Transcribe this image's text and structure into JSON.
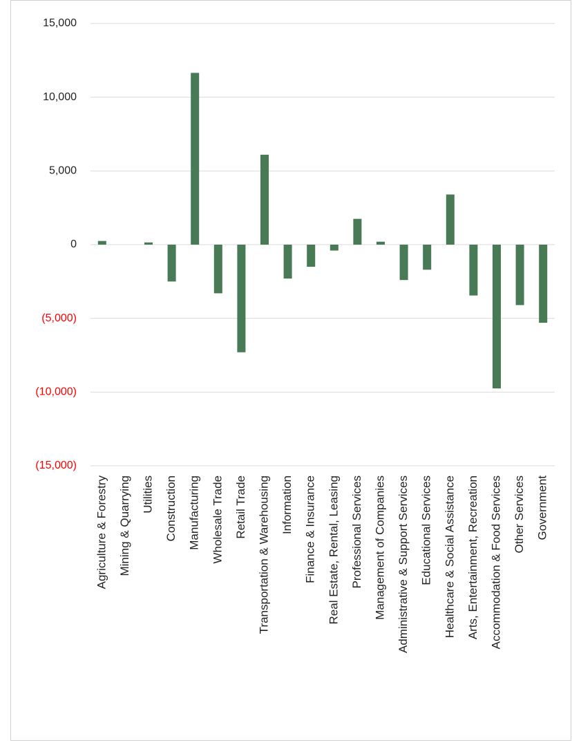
{
  "chart_data": {
    "type": "bar",
    "categories": [
      "Agriculture & Forestry",
      "Mining & Quarrying",
      "Utilities",
      "Construction",
      "Manufacturing",
      "Wholesale Trade",
      "Retail Trade",
      "Transportation & Warehousing",
      "Information",
      "Finance & Insurance",
      "Real Estate, Rental, Leasing",
      "Professional Services",
      "Management of Companies",
      "Administrative & Support Services",
      "Educational Services",
      "Healthcare & Social Assistance",
      "Arts, Entertainment, Recreation",
      "Accommodation & Food Services",
      "Other Services",
      "Government"
    ],
    "values": [
      250,
      0,
      150,
      -2500,
      11650,
      -3300,
      -7300,
      6100,
      -2300,
      -1500,
      -400,
      1750,
      200,
      -2400,
      -1700,
      3400,
      -3450,
      -9750,
      -4100,
      -5300
    ],
    "color": "#477a55",
    "ylim": [
      -15000,
      15000
    ],
    "yticks": [
      {
        "value": -15000,
        "label": "(15,000)"
      },
      {
        "value": -10000,
        "label": "(10,000)"
      },
      {
        "value": -5000,
        "label": "(5,000)"
      },
      0,
      {
        "value": 5000,
        "label": "5,000"
      },
      {
        "value": 10000,
        "label": "10,000"
      },
      {
        "value": 15000,
        "label": "15,000"
      }
    ],
    "negative_tick_color": "#ff0000",
    "grid": true
  }
}
